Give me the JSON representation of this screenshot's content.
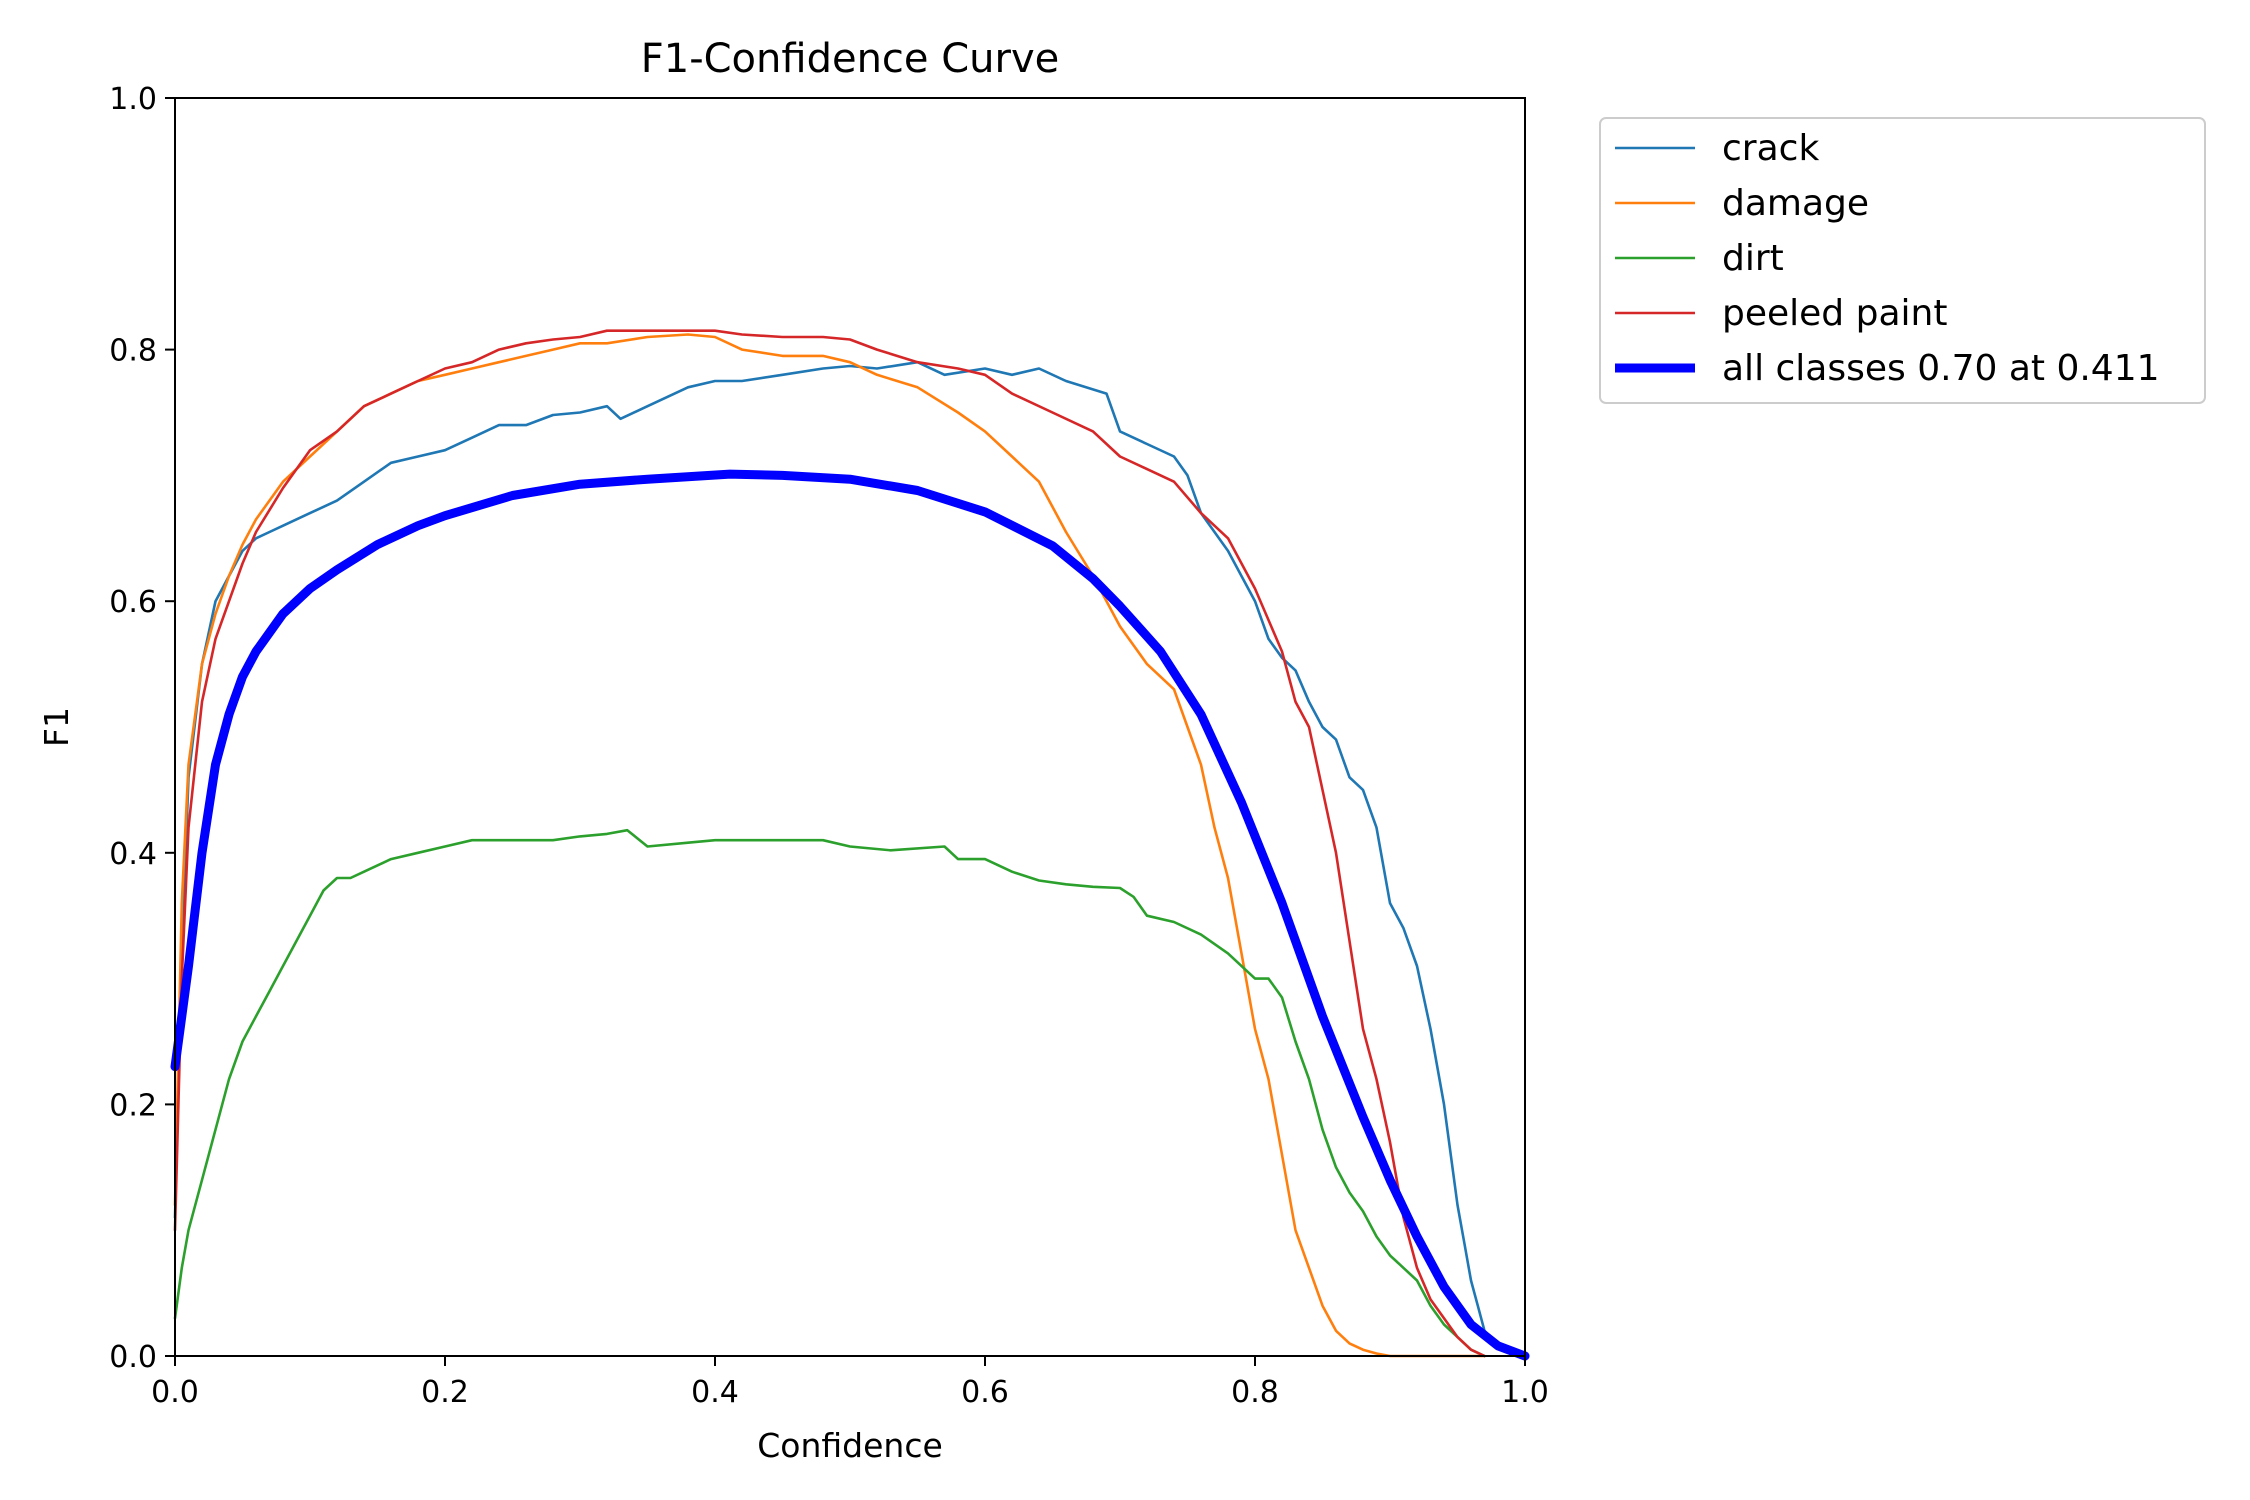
{
  "chart_data": {
    "type": "line",
    "title": "F1-Confidence Curve",
    "xlabel": "Confidence",
    "ylabel": "F1",
    "xlim": [
      0.0,
      1.0
    ],
    "ylim": [
      0.0,
      1.0
    ],
    "xticks": [
      "0.0",
      "0.2",
      "0.4",
      "0.6",
      "0.8",
      "1.0"
    ],
    "yticks": [
      "0.0",
      "0.2",
      "0.4",
      "0.6",
      "0.8",
      "1.0"
    ],
    "grid": false,
    "legend_position": "outside-top-right",
    "series": [
      {
        "name": "crack",
        "color": "#1f77b4",
        "x": [
          0.0,
          0.005,
          0.01,
          0.02,
          0.03,
          0.04,
          0.05,
          0.06,
          0.07,
          0.08,
          0.1,
          0.12,
          0.14,
          0.16,
          0.18,
          0.2,
          0.22,
          0.24,
          0.26,
          0.28,
          0.3,
          0.32,
          0.33,
          0.35,
          0.38,
          0.4,
          0.42,
          0.45,
          0.48,
          0.5,
          0.52,
          0.55,
          0.57,
          0.6,
          0.62,
          0.64,
          0.66,
          0.69,
          0.7,
          0.72,
          0.74,
          0.75,
          0.76,
          0.78,
          0.8,
          0.81,
          0.82,
          0.83,
          0.84,
          0.85,
          0.86,
          0.87,
          0.88,
          0.89,
          0.9,
          0.91,
          0.92,
          0.93,
          0.94,
          0.95,
          0.955,
          0.96,
          0.965,
          0.97,
          0.98,
          0.99,
          1.0
        ],
        "y": [
          0.11,
          0.32,
          0.46,
          0.55,
          0.6,
          0.62,
          0.64,
          0.65,
          0.655,
          0.66,
          0.67,
          0.68,
          0.695,
          0.71,
          0.715,
          0.72,
          0.73,
          0.74,
          0.74,
          0.748,
          0.75,
          0.755,
          0.745,
          0.755,
          0.77,
          0.775,
          0.775,
          0.78,
          0.785,
          0.787,
          0.785,
          0.79,
          0.78,
          0.785,
          0.78,
          0.785,
          0.775,
          0.765,
          0.735,
          0.725,
          0.715,
          0.7,
          0.67,
          0.64,
          0.6,
          0.57,
          0.555,
          0.545,
          0.52,
          0.5,
          0.49,
          0.46,
          0.45,
          0.42,
          0.36,
          0.34,
          0.31,
          0.26,
          0.2,
          0.12,
          0.09,
          0.06,
          0.04,
          0.02,
          0.008,
          0.003,
          0.0
        ]
      },
      {
        "name": "damage",
        "color": "#ff7f0e",
        "x": [
          0.0,
          0.005,
          0.01,
          0.02,
          0.03,
          0.04,
          0.05,
          0.06,
          0.08,
          0.1,
          0.12,
          0.14,
          0.16,
          0.18,
          0.2,
          0.22,
          0.24,
          0.26,
          0.28,
          0.3,
          0.32,
          0.35,
          0.38,
          0.4,
          0.42,
          0.45,
          0.48,
          0.5,
          0.52,
          0.55,
          0.58,
          0.6,
          0.62,
          0.64,
          0.66,
          0.68,
          0.7,
          0.72,
          0.74,
          0.75,
          0.76,
          0.77,
          0.78,
          0.79,
          0.8,
          0.81,
          0.82,
          0.83,
          0.84,
          0.85,
          0.86,
          0.87,
          0.88,
          0.89,
          0.9,
          0.92,
          0.94,
          0.96,
          0.97
        ],
        "y": [
          0.12,
          0.36,
          0.47,
          0.55,
          0.59,
          0.62,
          0.645,
          0.665,
          0.695,
          0.715,
          0.735,
          0.755,
          0.765,
          0.775,
          0.78,
          0.785,
          0.79,
          0.795,
          0.8,
          0.805,
          0.805,
          0.81,
          0.812,
          0.81,
          0.8,
          0.795,
          0.795,
          0.79,
          0.78,
          0.77,
          0.75,
          0.735,
          0.715,
          0.695,
          0.655,
          0.62,
          0.58,
          0.55,
          0.53,
          0.5,
          0.47,
          0.42,
          0.38,
          0.32,
          0.26,
          0.22,
          0.16,
          0.1,
          0.07,
          0.04,
          0.02,
          0.01,
          0.005,
          0.002,
          0.0,
          0.0,
          0.0,
          0.0,
          0.0
        ]
      },
      {
        "name": "dirt",
        "color": "#2ca02c",
        "x": [
          0.0,
          0.005,
          0.01,
          0.02,
          0.03,
          0.04,
          0.05,
          0.06,
          0.07,
          0.08,
          0.09,
          0.1,
          0.11,
          0.12,
          0.13,
          0.14,
          0.16,
          0.18,
          0.2,
          0.22,
          0.24,
          0.26,
          0.28,
          0.3,
          0.32,
          0.335,
          0.35,
          0.38,
          0.4,
          0.42,
          0.45,
          0.48,
          0.5,
          0.53,
          0.57,
          0.58,
          0.6,
          0.62,
          0.64,
          0.66,
          0.68,
          0.7,
          0.71,
          0.72,
          0.74,
          0.76,
          0.78,
          0.8,
          0.81,
          0.82,
          0.83,
          0.84,
          0.85,
          0.86,
          0.87,
          0.88,
          0.89,
          0.9,
          0.91,
          0.92,
          0.93,
          0.94,
          0.95,
          0.96,
          0.97
        ],
        "y": [
          0.03,
          0.07,
          0.1,
          0.14,
          0.18,
          0.22,
          0.25,
          0.27,
          0.29,
          0.31,
          0.33,
          0.35,
          0.37,
          0.38,
          0.38,
          0.385,
          0.395,
          0.4,
          0.405,
          0.41,
          0.41,
          0.41,
          0.41,
          0.413,
          0.415,
          0.418,
          0.405,
          0.408,
          0.41,
          0.41,
          0.41,
          0.41,
          0.405,
          0.402,
          0.405,
          0.395,
          0.395,
          0.385,
          0.378,
          0.375,
          0.373,
          0.372,
          0.365,
          0.35,
          0.345,
          0.335,
          0.32,
          0.3,
          0.3,
          0.285,
          0.25,
          0.22,
          0.18,
          0.15,
          0.13,
          0.115,
          0.095,
          0.08,
          0.07,
          0.06,
          0.04,
          0.025,
          0.015,
          0.005,
          0.0
        ]
      },
      {
        "name": "peeled paint",
        "color": "#d62728",
        "x": [
          0.0,
          0.005,
          0.01,
          0.02,
          0.03,
          0.04,
          0.05,
          0.06,
          0.08,
          0.1,
          0.12,
          0.14,
          0.16,
          0.18,
          0.2,
          0.22,
          0.24,
          0.26,
          0.28,
          0.3,
          0.32,
          0.35,
          0.38,
          0.4,
          0.42,
          0.45,
          0.48,
          0.5,
          0.52,
          0.55,
          0.58,
          0.6,
          0.62,
          0.65,
          0.68,
          0.7,
          0.72,
          0.74,
          0.76,
          0.78,
          0.8,
          0.82,
          0.83,
          0.84,
          0.85,
          0.86,
          0.87,
          0.88,
          0.89,
          0.9,
          0.91,
          0.92,
          0.93,
          0.94,
          0.95,
          0.96,
          0.97
        ],
        "y": [
          0.1,
          0.3,
          0.42,
          0.52,
          0.57,
          0.6,
          0.63,
          0.655,
          0.69,
          0.72,
          0.735,
          0.755,
          0.765,
          0.775,
          0.785,
          0.79,
          0.8,
          0.805,
          0.808,
          0.81,
          0.815,
          0.815,
          0.815,
          0.815,
          0.812,
          0.81,
          0.81,
          0.808,
          0.8,
          0.79,
          0.785,
          0.78,
          0.765,
          0.75,
          0.735,
          0.715,
          0.705,
          0.695,
          0.67,
          0.65,
          0.61,
          0.56,
          0.52,
          0.5,
          0.45,
          0.4,
          0.33,
          0.26,
          0.22,
          0.17,
          0.11,
          0.07,
          0.045,
          0.03,
          0.015,
          0.005,
          0.0
        ]
      },
      {
        "name": "all classes 0.70 at 0.411",
        "color": "#0000ff",
        "x": [
          0.0,
          0.005,
          0.01,
          0.02,
          0.03,
          0.04,
          0.05,
          0.06,
          0.08,
          0.1,
          0.12,
          0.15,
          0.18,
          0.2,
          0.25,
          0.3,
          0.35,
          0.411,
          0.45,
          0.5,
          0.55,
          0.6,
          0.65,
          0.68,
          0.7,
          0.73,
          0.76,
          0.79,
          0.82,
          0.85,
          0.88,
          0.9,
          0.92,
          0.94,
          0.96,
          0.98,
          1.0
        ],
        "y": [
          0.23,
          0.27,
          0.31,
          0.4,
          0.47,
          0.51,
          0.54,
          0.56,
          0.59,
          0.61,
          0.625,
          0.645,
          0.66,
          0.668,
          0.684,
          0.693,
          0.697,
          0.701,
          0.7,
          0.697,
          0.688,
          0.671,
          0.644,
          0.618,
          0.596,
          0.56,
          0.51,
          0.44,
          0.36,
          0.27,
          0.19,
          0.14,
          0.095,
          0.055,
          0.025,
          0.008,
          0.0
        ]
      }
    ]
  }
}
